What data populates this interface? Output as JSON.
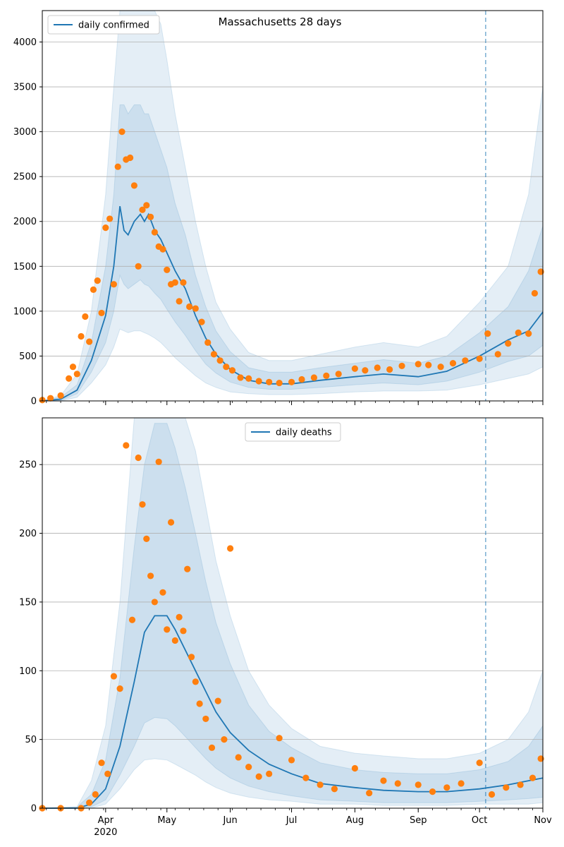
{
  "chart_data": [
    {
      "type": "line",
      "title": "Massachusetts 28 days",
      "xlabel": "",
      "ylabel": "",
      "x_tick_labels": [
        "Apr",
        "May",
        "Jun",
        "Jul",
        "Aug",
        "Sep",
        "Oct",
        "Nov"
      ],
      "x_tick_dates": [
        "2020-04-01",
        "2020-05-01",
        "2020-06-01",
        "2020-07-01",
        "2020-08-01",
        "2020-09-01",
        "2020-10-01",
        "2020-11-01"
      ],
      "x_year_label": "2020",
      "xlim": [
        "2020-03-01",
        "2020-11-01"
      ],
      "ylim": [
        0,
        4350
      ],
      "y_ticks": [
        0,
        500,
        1000,
        1500,
        2000,
        2500,
        3000,
        3500,
        4000
      ],
      "grid": "horizontal",
      "legend": "top-left",
      "vline_date": "2020-10-04",
      "colors": {
        "line": "#1f77b4",
        "points": "#ff7f0e",
        "band": "#1f77b4",
        "vline": "#1f77b4"
      },
      "series": [
        {
          "name": "daily confirmed",
          "x": [
            "2020-03-01",
            "2020-03-10",
            "2020-03-18",
            "2020-03-25",
            "2020-04-01",
            "2020-04-05",
            "2020-04-08",
            "2020-04-10",
            "2020-04-12",
            "2020-04-15",
            "2020-04-18",
            "2020-04-20",
            "2020-04-22",
            "2020-04-25",
            "2020-04-28",
            "2020-05-01",
            "2020-05-05",
            "2020-05-10",
            "2020-05-15",
            "2020-05-20",
            "2020-05-25",
            "2020-06-01",
            "2020-06-10",
            "2020-06-20",
            "2020-07-01",
            "2020-07-15",
            "2020-08-01",
            "2020-08-15",
            "2020-09-01",
            "2020-09-15",
            "2020-10-01",
            "2020-10-15",
            "2020-10-25",
            "2020-11-01"
          ],
          "values": [
            0,
            20,
            120,
            450,
            950,
            1500,
            2170,
            1900,
            1850,
            2000,
            2080,
            2000,
            2080,
            1900,
            1800,
            1650,
            1450,
            1250,
            950,
            700,
            520,
            350,
            230,
            190,
            190,
            230,
            270,
            300,
            270,
            330,
            500,
            680,
            780,
            990
          ],
          "bands": [
            {
              "lower": [
                0,
                0,
                40,
                200,
                400,
                600,
                800,
                780,
                760,
                780,
                780,
                760,
                740,
                700,
                650,
                580,
                480,
                380,
                280,
                200,
                150,
                100,
                80,
                70,
                70,
                80,
                100,
                110,
                110,
                120,
                180,
                250,
                300,
                380
              ],
              "upper": [
                0,
                60,
                300,
                1000,
                2300,
                3500,
                4350,
                4350,
                4350,
                4350,
                4350,
                4350,
                4350,
                4350,
                4200,
                3800,
                3200,
                2600,
                2000,
                1500,
                1100,
                800,
                540,
                450,
                450,
                520,
                600,
                650,
                600,
                720,
                1100,
                1500,
                2300,
                3500
              ]
            },
            {
              "lower": [
                0,
                5,
                80,
                320,
                650,
                1000,
                1400,
                1300,
                1250,
                1300,
                1350,
                1300,
                1280,
                1200,
                1130,
                1020,
                880,
                730,
                560,
                410,
                310,
                210,
                150,
                130,
                130,
                150,
                180,
                200,
                180,
                220,
                320,
                440,
                500,
                620
              ],
              "upper": [
                0,
                40,
                180,
                650,
                1500,
                2300,
                3300,
                3300,
                3200,
                3300,
                3300,
                3200,
                3200,
                3000,
                2800,
                2600,
                2200,
                1850,
                1400,
                1050,
                780,
                550,
                370,
                320,
                320,
                370,
                420,
                460,
                420,
                500,
                760,
                1050,
                1450,
                1950
              ]
            }
          ]
        },
        {
          "name": "",
          "kind": "observed",
          "x": [
            "2020-03-01",
            "2020-03-05",
            "2020-03-10",
            "2020-03-14",
            "2020-03-16",
            "2020-03-18",
            "2020-03-20",
            "2020-03-22",
            "2020-03-24",
            "2020-03-26",
            "2020-03-28",
            "2020-03-30",
            "2020-04-01",
            "2020-04-03",
            "2020-04-05",
            "2020-04-07",
            "2020-04-09",
            "2020-04-11",
            "2020-04-13",
            "2020-04-15",
            "2020-04-17",
            "2020-04-19",
            "2020-04-21",
            "2020-04-23",
            "2020-04-25",
            "2020-04-27",
            "2020-04-29",
            "2020-05-01",
            "2020-05-03",
            "2020-05-05",
            "2020-05-07",
            "2020-05-09",
            "2020-05-12",
            "2020-05-15",
            "2020-05-18",
            "2020-05-21",
            "2020-05-24",
            "2020-05-27",
            "2020-05-30",
            "2020-06-02",
            "2020-06-06",
            "2020-06-10",
            "2020-06-15",
            "2020-06-20",
            "2020-06-25",
            "2020-07-01",
            "2020-07-06",
            "2020-07-12",
            "2020-07-18",
            "2020-07-24",
            "2020-08-01",
            "2020-08-06",
            "2020-08-12",
            "2020-08-18",
            "2020-08-24",
            "2020-09-01",
            "2020-09-06",
            "2020-09-12",
            "2020-09-18",
            "2020-09-24",
            "2020-10-01",
            "2020-10-05",
            "2020-10-10",
            "2020-10-15",
            "2020-10-20",
            "2020-10-25",
            "2020-10-28",
            "2020-10-31"
          ],
          "values": [
            10,
            30,
            60,
            250,
            380,
            300,
            720,
            940,
            660,
            1240,
            1340,
            980,
            1930,
            2030,
            1300,
            2610,
            3000,
            2690,
            2710,
            2400,
            1500,
            2130,
            2180,
            2050,
            1880,
            1720,
            1690,
            1460,
            1300,
            1320,
            1110,
            1320,
            1050,
            1030,
            880,
            650,
            520,
            450,
            380,
            340,
            260,
            250,
            220,
            210,
            200,
            210,
            240,
            260,
            280,
            300,
            360,
            340,
            370,
            350,
            390,
            410,
            400,
            380,
            420,
            450,
            470,
            750,
            520,
            640,
            760,
            750,
            1200,
            1440
          ]
        }
      ]
    },
    {
      "type": "line",
      "title": "",
      "xlabel": "",
      "ylabel": "",
      "x_tick_labels": [
        "Apr",
        "May",
        "Jun",
        "Jul",
        "Aug",
        "Sep",
        "Oct",
        "Nov"
      ],
      "x_tick_dates": [
        "2020-04-01",
        "2020-05-01",
        "2020-06-01",
        "2020-07-01",
        "2020-08-01",
        "2020-09-01",
        "2020-10-01",
        "2020-11-01"
      ],
      "x_year_label": "2020",
      "xlim": [
        "2020-03-01",
        "2020-11-01"
      ],
      "ylim": [
        0,
        284
      ],
      "y_ticks": [
        0,
        50,
        100,
        150,
        200,
        250
      ],
      "grid": "horizontal",
      "legend": "top-center",
      "vline_date": "2020-10-04",
      "colors": {
        "line": "#1f77b4",
        "points": "#ff7f0e",
        "band": "#1f77b4",
        "vline": "#1f77b4"
      },
      "series": [
        {
          "name": "daily deaths",
          "x": [
            "2020-03-01",
            "2020-03-18",
            "2020-03-25",
            "2020-04-01",
            "2020-04-08",
            "2020-04-15",
            "2020-04-20",
            "2020-04-25",
            "2020-05-01",
            "2020-05-05",
            "2020-05-10",
            "2020-05-15",
            "2020-05-20",
            "2020-05-25",
            "2020-06-01",
            "2020-06-10",
            "2020-06-20",
            "2020-07-01",
            "2020-07-15",
            "2020-08-01",
            "2020-08-15",
            "2020-09-01",
            "2020-09-15",
            "2020-10-01",
            "2020-10-15",
            "2020-10-25",
            "2020-11-01"
          ],
          "values": [
            0,
            0,
            3,
            14,
            45,
            92,
            128,
            140,
            140,
            130,
            115,
            100,
            85,
            70,
            55,
            42,
            32,
            25,
            18,
            15,
            13,
            12,
            12,
            14,
            17,
            20,
            22
          ],
          "bands": [
            {
              "lower": [
                0,
                0,
                0,
                3,
                14,
                28,
                35,
                36,
                35,
                32,
                28,
                24,
                19,
                15,
                11,
                8,
                6,
                5,
                3,
                3,
                2,
                2,
                2,
                3,
                3,
                3,
                4
              ],
              "upper": [
                0,
                1,
                20,
                60,
                150,
                284,
                284,
                284,
                284,
                284,
                284,
                260,
                220,
                180,
                140,
                100,
                75,
                58,
                45,
                40,
                38,
                36,
                36,
                40,
                50,
                70,
                100
              ]
            },
            {
              "lower": [
                0,
                0,
                1,
                6,
                24,
                45,
                62,
                66,
                65,
                60,
                52,
                44,
                36,
                29,
                22,
                16,
                12,
                9,
                6,
                5,
                4,
                4,
                4,
                5,
                6,
                7,
                8
              ],
              "upper": [
                0,
                1,
                10,
                35,
                95,
                190,
                250,
                280,
                280,
                262,
                233,
                200,
                165,
                135,
                105,
                75,
                56,
                44,
                33,
                28,
                26,
                25,
                25,
                28,
                34,
                45,
                60
              ]
            }
          ]
        },
        {
          "name": "",
          "kind": "observed",
          "x": [
            "2020-03-01",
            "2020-03-10",
            "2020-03-20",
            "2020-03-24",
            "2020-03-27",
            "2020-03-30",
            "2020-04-02",
            "2020-04-05",
            "2020-04-08",
            "2020-04-11",
            "2020-04-14",
            "2020-04-17",
            "2020-04-19",
            "2020-04-21",
            "2020-04-23",
            "2020-04-25",
            "2020-04-27",
            "2020-04-29",
            "2020-05-01",
            "2020-05-03",
            "2020-05-05",
            "2020-05-07",
            "2020-05-09",
            "2020-05-11",
            "2020-05-13",
            "2020-05-15",
            "2020-05-17",
            "2020-05-20",
            "2020-05-23",
            "2020-05-26",
            "2020-05-29",
            "2020-06-01",
            "2020-06-05",
            "2020-06-10",
            "2020-06-15",
            "2020-06-20",
            "2020-06-25",
            "2020-07-01",
            "2020-07-08",
            "2020-07-15",
            "2020-07-22",
            "2020-08-01",
            "2020-08-08",
            "2020-08-15",
            "2020-08-22",
            "2020-09-01",
            "2020-09-08",
            "2020-09-15",
            "2020-09-22",
            "2020-10-01",
            "2020-10-07",
            "2020-10-14",
            "2020-10-21",
            "2020-10-27",
            "2020-10-31"
          ],
          "values": [
            0,
            0,
            0,
            4,
            10,
            33,
            25,
            96,
            87,
            264,
            137,
            255,
            221,
            196,
            169,
            150,
            252,
            157,
            130,
            208,
            122,
            139,
            129,
            174,
            110,
            92,
            76,
            65,
            44,
            78,
            50,
            189,
            37,
            30,
            23,
            25,
            51,
            35,
            22,
            17,
            14,
            29,
            11,
            20,
            18,
            17,
            12,
            15,
            18,
            33,
            10,
            15,
            17,
            22,
            36
          ]
        }
      ]
    }
  ]
}
